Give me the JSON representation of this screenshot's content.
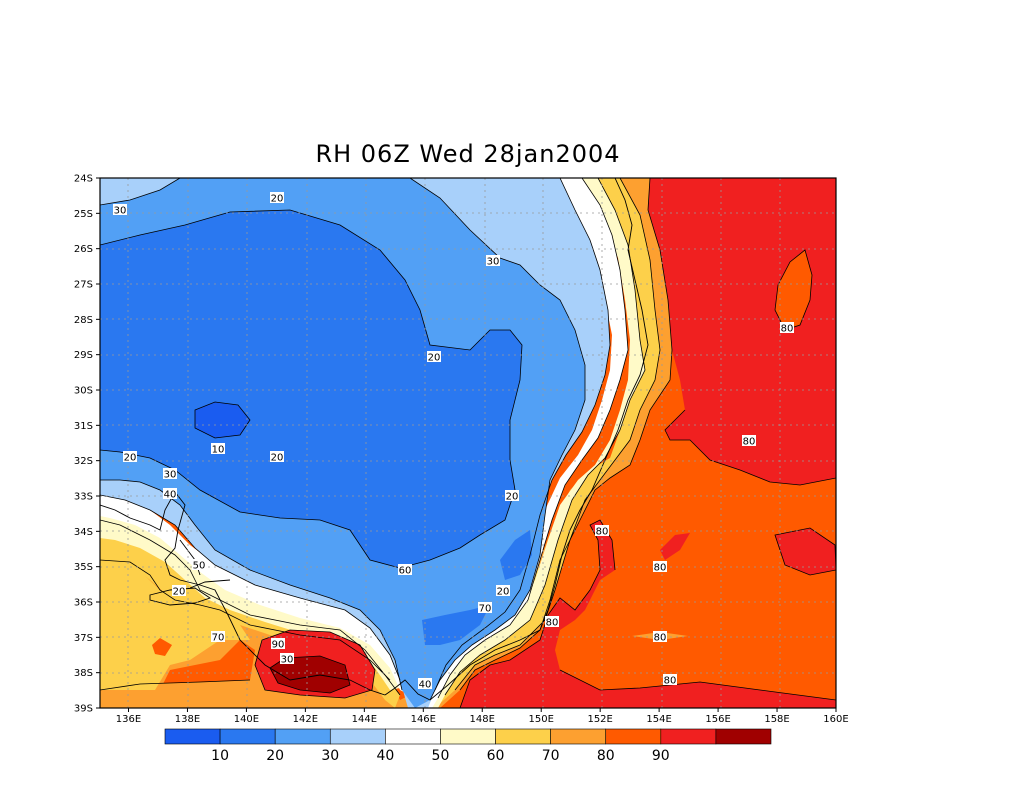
{
  "title": "RH 06Z Wed 28jan2004",
  "axes": {
    "lat_ticks": [
      "24S",
      "25S",
      "26S",
      "27S",
      "28S",
      "29S",
      "30S",
      "31S",
      "32S",
      "33S",
      "34S",
      "35S",
      "36S",
      "37S",
      "38S",
      "39S"
    ],
    "lon_ticks": [
      "136E",
      "138E",
      "140E",
      "142E",
      "144E",
      "146E",
      "148E",
      "150E",
      "152E",
      "154E",
      "156E",
      "158E",
      "160E"
    ]
  },
  "colorbar": {
    "colors": [
      "#1a5cf0",
      "#2a78f0",
      "#52a0f5",
      "#a8d0fa",
      "#ffffff",
      "#fffac8",
      "#fdd04a",
      "#fda030",
      "#ff5a00",
      "#f02020",
      "#a00000"
    ],
    "labels": [
      "10",
      "20",
      "30",
      "40",
      "50",
      "60",
      "70",
      "80",
      "90"
    ]
  },
  "contour_labels": [
    {
      "text": "30"
    },
    {
      "text": "20"
    },
    {
      "text": "30"
    },
    {
      "text": "20"
    },
    {
      "text": "80"
    },
    {
      "text": "80"
    },
    {
      "text": "10"
    },
    {
      "text": "20"
    },
    {
      "text": "20"
    },
    {
      "text": "30"
    },
    {
      "text": "40"
    },
    {
      "text": "20"
    },
    {
      "text": "80"
    },
    {
      "text": "50"
    },
    {
      "text": "80"
    },
    {
      "text": "60"
    },
    {
      "text": "20"
    },
    {
      "text": "20"
    },
    {
      "text": "80"
    },
    {
      "text": "70"
    },
    {
      "text": "70"
    },
    {
      "text": "80"
    },
    {
      "text": "90"
    },
    {
      "text": "30"
    },
    {
      "text": "40"
    },
    {
      "text": "80"
    }
  ]
}
